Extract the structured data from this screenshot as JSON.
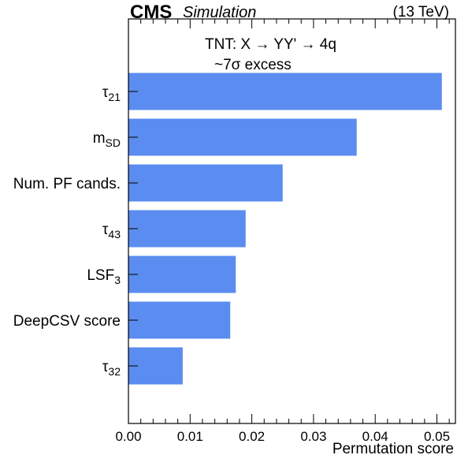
{
  "header": {
    "experiment": "CMS",
    "label": "Simulation",
    "energy": "(13 TeV)"
  },
  "annotation": {
    "line1": "TNT: X  →  YY'  →  4q",
    "line2": "~7σ excess"
  },
  "chart_data": {
    "type": "bar",
    "orientation": "horizontal",
    "categories": [
      {
        "base": "τ",
        "sub": "21"
      },
      {
        "base": "m",
        "sub": "SD"
      },
      {
        "base": "Num. PF cands.",
        "sub": ""
      },
      {
        "base": "τ",
        "sub": "43"
      },
      {
        "base": "LSF",
        "sub": "3"
      },
      {
        "base": "DeepCSV score",
        "sub": ""
      },
      {
        "base": "τ",
        "sub": "32"
      }
    ],
    "values": [
      0.0508,
      0.037,
      0.025,
      0.019,
      0.0174,
      0.0165,
      0.0088
    ],
    "xlabel": "Permutation score",
    "xlim": [
      0.0,
      0.053
    ],
    "xticks": [
      "0.00",
      "0.01",
      "0.02",
      "0.03",
      "0.04",
      "0.05"
    ],
    "bar_color": "#5b8cf0",
    "grid": false
  }
}
